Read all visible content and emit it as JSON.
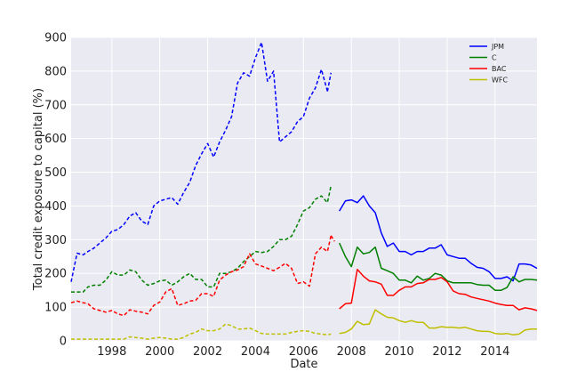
{
  "chart_data": {
    "type": "line",
    "title": "",
    "xlabel": "Date",
    "ylabel": "Total credit exposure to capital (%)",
    "xlim": [
      1996.3,
      2015.75
    ],
    "ylim": [
      0,
      900
    ],
    "x_ticks": [
      1998,
      2000,
      2002,
      2004,
      2006,
      2008,
      2010,
      2012,
      2014
    ],
    "y_ticks": [
      0,
      100,
      200,
      300,
      400,
      500,
      600,
      700,
      800,
      900
    ],
    "grid": true,
    "legend_position": "top-right",
    "series": [
      {
        "name": "JPM",
        "color": "#0000ff",
        "segments": [
          {
            "style": "dashed",
            "x": [
              1996.3,
              1996.55,
              1996.8,
              1997.0,
              1997.25,
              1997.5,
              1997.75,
              1998.0,
              1998.25,
              1998.5,
              1998.75,
              1999.0,
              1999.25,
              1999.5,
              1999.75,
              2000.0,
              2000.25,
              2000.5,
              2000.75,
              2001.0,
              2001.25,
              2001.5,
              2001.75,
              2002.0,
              2002.25,
              2002.5,
              2002.75,
              2003.0,
              2003.25,
              2003.5,
              2003.75,
              2004.0,
              2004.25,
              2004.5,
              2004.75,
              2005.0,
              2005.25,
              2005.5,
              2005.75,
              2006.0,
              2006.25,
              2006.5,
              2006.75,
              2007.0
            ],
            "y": [
              175,
              260,
              255,
              265,
              275,
              290,
              305,
              325,
              330,
              345,
              370,
              380,
              355,
              345,
              400,
              415,
              420,
              425,
              405,
              440,
              470,
              520,
              555,
              585,
              545,
              590,
              625,
              665,
              765,
              795,
              785,
              840,
              885,
              770,
              800,
              590,
              605,
              620,
              650,
              665,
              720,
              750,
              805,
              740
            ]
          },
          {
            "style": "dashed",
            "x": [
              2007.0,
              2007.15
            ],
            "y": [
              740,
              795
            ]
          },
          {
            "style": "solid",
            "x": [
              2007.5,
              2007.75,
              2008.0,
              2008.25,
              2008.5,
              2008.75,
              2009.0,
              2009.25,
              2009.5,
              2009.75,
              2010.0,
              2010.25,
              2010.5,
              2010.75,
              2011.0,
              2011.25,
              2011.5,
              2011.75,
              2012.0,
              2012.25,
              2012.5,
              2012.75,
              2013.0,
              2013.25,
              2013.5,
              2013.75,
              2014.0,
              2014.25,
              2014.5,
              2014.75,
              2015.0,
              2015.25,
              2015.5,
              2015.75
            ],
            "y": [
              385,
              415,
              418,
              410,
              430,
              400,
              380,
              320,
              280,
              290,
              265,
              265,
              255,
              265,
              265,
              275,
              275,
              285,
              255,
              250,
              245,
              245,
              230,
              218,
              215,
              205,
              185,
              185,
              190,
              178,
              228,
              228,
              225,
              215
            ]
          }
        ]
      },
      {
        "name": "C",
        "color": "#008000",
        "segments": [
          {
            "style": "dashed",
            "x": [
              1996.3,
              1996.55,
              1996.8,
              1997.0,
              1997.25,
              1997.5,
              1997.75,
              1998.0,
              1998.25,
              1998.5,
              1998.75,
              1999.0,
              1999.25,
              1999.5,
              1999.75,
              2000.0,
              2000.25,
              2000.5,
              2000.75,
              2001.0,
              2001.25,
              2001.5,
              2001.75,
              2002.0,
              2002.25,
              2002.5,
              2002.75,
              2003.0,
              2003.25,
              2003.5,
              2003.75,
              2004.0,
              2004.25,
              2004.5,
              2004.75,
              2005.0,
              2005.25,
              2005.5,
              2005.75,
              2006.0,
              2006.25,
              2006.5,
              2006.75,
              2007.0,
              2007.15
            ],
            "y": [
              145,
              145,
              145,
              160,
              165,
              165,
              180,
              205,
              195,
              195,
              210,
              205,
              180,
              165,
              170,
              178,
              180,
              165,
              175,
              190,
              200,
              182,
              182,
              160,
              160,
              200,
              200,
              205,
              215,
              235,
              250,
              265,
              262,
              265,
              280,
              300,
              300,
              310,
              345,
              385,
              395,
              420,
              430,
              410,
              460
            ]
          },
          {
            "style": "solid",
            "x": [
              2007.5,
              2007.75,
              2008.0,
              2008.25,
              2008.5,
              2008.75,
              2009.0,
              2009.25,
              2009.5,
              2009.75,
              2010.0,
              2010.25,
              2010.5,
              2010.75,
              2011.0,
              2011.25,
              2011.5,
              2011.75,
              2012.0,
              2012.25,
              2012.5,
              2012.75,
              2013.0,
              2013.25,
              2013.5,
              2013.75,
              2014.0,
              2014.25,
              2014.5,
              2014.75,
              2015.0,
              2015.25,
              2015.5,
              2015.75
            ],
            "y": [
              290,
              250,
              220,
              278,
              258,
              262,
              278,
              215,
              208,
              200,
              180,
              180,
              172,
              192,
              180,
              185,
              200,
              195,
              178,
              172,
              172,
              172,
              172,
              167,
              165,
              165,
              150,
              150,
              158,
              190,
              175,
              182,
              182,
              180
            ]
          }
        ]
      },
      {
        "name": "BAC",
        "color": "#ff0000",
        "segments": [
          {
            "style": "dashed",
            "x": [
              1996.3,
              1996.55,
              1996.8,
              1997.0,
              1997.25,
              1997.5,
              1997.75,
              1998.0,
              1998.25,
              1998.5,
              1998.75,
              1999.0,
              1999.25,
              1999.5,
              1999.75,
              2000.0,
              2000.25,
              2000.5,
              2000.75,
              2001.0,
              2001.25,
              2001.5,
              2001.75,
              2002.0,
              2002.25,
              2002.5,
              2002.75,
              2003.0,
              2003.25,
              2003.5,
              2003.75,
              2004.0,
              2004.25,
              2004.5,
              2004.75,
              2005.0,
              2005.25,
              2005.5,
              2005.75,
              2006.0,
              2006.25,
              2006.5,
              2006.75,
              2007.0,
              2007.15
            ],
            "y": [
              113,
              118,
              113,
              110,
              95,
              90,
              85,
              90,
              80,
              75,
              92,
              88,
              85,
              80,
              105,
              115,
              145,
              155,
              105,
              110,
              118,
              120,
              140,
              140,
              132,
              180,
              195,
              205,
              210,
              220,
              258,
              228,
              222,
              215,
              208,
              218,
              230,
              215,
              170,
              175,
              162,
              258,
              278,
              265,
              312
            ]
          },
          {
            "style": "dashed",
            "x": [
              2007.15,
              2007.3
            ],
            "y": [
              312,
              295
            ]
          },
          {
            "style": "solid",
            "x": [
              2007.5,
              2007.75,
              2008.0,
              2008.25,
              2008.5,
              2008.75,
              2009.0,
              2009.25,
              2009.5,
              2009.75,
              2010.0,
              2010.25,
              2010.5,
              2010.75,
              2011.0,
              2011.25,
              2011.5,
              2011.75,
              2012.0,
              2012.25,
              2012.5,
              2012.75,
              2013.0,
              2013.25,
              2013.5,
              2013.75,
              2014.0,
              2014.25,
              2014.5,
              2014.75,
              2015.0,
              2015.25,
              2015.5,
              2015.75
            ],
            "y": [
              95,
              110,
              112,
              212,
              192,
              178,
              175,
              168,
              135,
              135,
              150,
              160,
              160,
              170,
              172,
              182,
              182,
              188,
              175,
              148,
              140,
              138,
              130,
              126,
              122,
              118,
              112,
              108,
              105,
              105,
              92,
              98,
              95,
              90
            ]
          }
        ]
      },
      {
        "name": "WFC",
        "color": "#bfbf00",
        "segments": [
          {
            "style": "dashed",
            "x": [
              1996.3,
              1996.55,
              1996.8,
              1997.0,
              1997.25,
              1997.5,
              1997.75,
              1998.0,
              1998.25,
              1998.5,
              1998.75,
              1999.0,
              1999.25,
              1999.5,
              1999.75,
              2000.0,
              2000.25,
              2000.5,
              2000.75,
              2001.0,
              2001.25,
              2001.5,
              2001.75,
              2002.0,
              2002.25,
              2002.5,
              2002.75,
              2003.0,
              2003.25,
              2003.5,
              2003.75,
              2004.0,
              2004.25,
              2004.5,
              2004.75,
              2005.0,
              2005.25,
              2005.5,
              2005.75,
              2006.0,
              2006.25,
              2006.5,
              2006.75,
              2007.0,
              2007.15
            ],
            "y": [
              5,
              5,
              5,
              5,
              5,
              5,
              5,
              5,
              5,
              5,
              12,
              10,
              8,
              5,
              8,
              10,
              8,
              5,
              5,
              10,
              20,
              25,
              35,
              30,
              30,
              35,
              50,
              45,
              35,
              35,
              38,
              30,
              22,
              20,
              20,
              20,
              20,
              25,
              28,
              30,
              28,
              22,
              20,
              18,
              20
            ]
          },
          {
            "style": "solid",
            "x": [
              2007.5,
              2007.75,
              2008.0,
              2008.25,
              2008.5,
              2008.75,
              2009.0,
              2009.25,
              2009.5,
              2009.75,
              2010.0,
              2010.25,
              2010.5,
              2010.75,
              2011.0,
              2011.25,
              2011.5,
              2011.75,
              2012.0,
              2012.25,
              2012.5,
              2012.75,
              2013.0,
              2013.25,
              2013.5,
              2013.75,
              2014.0,
              2014.25,
              2014.5,
              2014.75,
              2015.0,
              2015.25,
              2015.5,
              2015.75
            ],
            "y": [
              22,
              25,
              35,
              58,
              48,
              50,
              92,
              80,
              70,
              68,
              60,
              55,
              60,
              55,
              55,
              38,
              38,
              42,
              40,
              40,
              38,
              40,
              35,
              30,
              28,
              28,
              22,
              20,
              22,
              18,
              20,
              32,
              35,
              35
            ]
          }
        ]
      }
    ]
  }
}
